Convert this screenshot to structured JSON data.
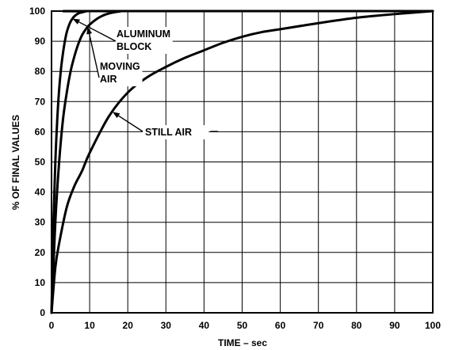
{
  "chart_data": {
    "type": "line",
    "xlabel": "TIME – sec",
    "ylabel": "% OF FINAL VALUES",
    "xlim": [
      0,
      100
    ],
    "ylim": [
      0,
      100
    ],
    "x_ticks": [
      "0",
      "10",
      "20",
      "30",
      "40",
      "50",
      "60",
      "70",
      "80",
      "90",
      "100"
    ],
    "y_ticks": [
      "0",
      "10",
      "20",
      "30",
      "40",
      "50",
      "60",
      "70",
      "80",
      "90",
      "100"
    ],
    "grid": true,
    "series": [
      {
        "name": "ALUMINUM BLOCK",
        "x": [
          0,
          0.5,
          1,
          1.5,
          2,
          2.5,
          3,
          3.5,
          4,
          4.5,
          5,
          5.5,
          6,
          7,
          8,
          9,
          10,
          100
        ],
        "y": [
          0,
          30,
          50,
          64,
          74,
          81,
          86,
          90,
          93,
          95,
          96.5,
          97.5,
          98.3,
          99.2,
          99.6,
          99.9,
          100,
          100
        ]
      },
      {
        "name": "MOVING AIR",
        "x": [
          0,
          1,
          2,
          3,
          4,
          5,
          6,
          7,
          8,
          9,
          10,
          12,
          14,
          16,
          18,
          20,
          100
        ],
        "y": [
          0,
          30,
          50,
          64,
          73,
          80,
          85,
          89,
          92,
          94,
          95.5,
          97.5,
          98.8,
          99.5,
          99.9,
          100,
          100
        ]
      },
      {
        "name": "STILL AIR",
        "x": [
          0,
          1,
          2,
          4,
          6,
          8,
          10,
          15,
          20,
          25,
          30,
          35,
          40,
          45,
          50,
          55,
          60,
          70,
          80,
          90,
          100
        ],
        "y": [
          0,
          15,
          23,
          35,
          42,
          47,
          53,
          65,
          73,
          78,
          81.5,
          84.5,
          87,
          89.5,
          91.5,
          93,
          94,
          96,
          97.8,
          99,
          100
        ]
      }
    ],
    "annotations": [
      {
        "lines": [
          "ALUMINUM",
          "BLOCK"
        ],
        "series": "ALUMINUM BLOCK"
      },
      {
        "lines": [
          "MOVING",
          "AIR"
        ],
        "series": "MOVING AIR"
      },
      {
        "lines": [
          "STILL AIR"
        ],
        "series": "STILL AIR"
      }
    ]
  }
}
